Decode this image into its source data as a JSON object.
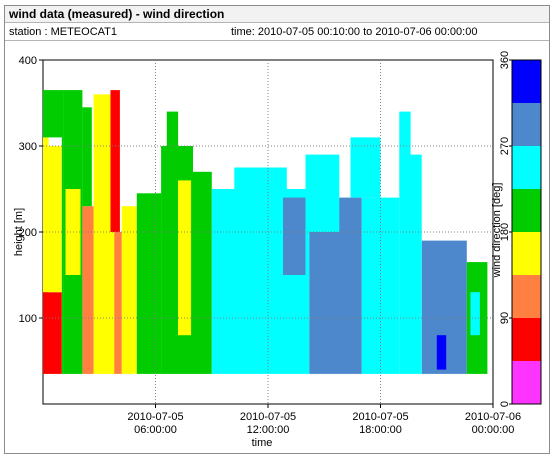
{
  "header": {
    "title": "wind data (measured) - wind direction",
    "station": "station : METEOCAT1",
    "time_range": "time: 2010-07-05 00:10:00 to 2010-07-06 00:00:00"
  },
  "chart_data": {
    "type": "heatmap",
    "xlabel": "time",
    "ylabel": "height [m]",
    "colorbar_label": "wind direction [deg]",
    "x_range_hours": [
      0,
      24
    ],
    "x_ticks": [
      {
        "hour": 6,
        "line1": "2010-07-05",
        "line2": "06:00:00"
      },
      {
        "hour": 12,
        "line1": "2010-07-05",
        "line2": "12:00:00"
      },
      {
        "hour": 18,
        "line1": "2010-07-05",
        "line2": "18:00:00"
      },
      {
        "hour": 24,
        "line1": "2010-07-06",
        "line2": "00:00:00"
      }
    ],
    "ylim": [
      0,
      400
    ],
    "y_ticks": [
      100,
      200,
      300,
      400
    ],
    "colorbar": {
      "ticks": [
        0,
        90,
        180,
        270,
        360
      ],
      "bins": [
        {
          "from": 0,
          "to": 45,
          "color": "#ff33ff"
        },
        {
          "from": 45,
          "to": 90,
          "color": "#ff0000"
        },
        {
          "from": 90,
          "to": 135,
          "color": "#ff8040"
        },
        {
          "from": 135,
          "to": 180,
          "color": "#ffff00"
        },
        {
          "from": 180,
          "to": 225,
          "color": "#00cc00"
        },
        {
          "from": 225,
          "to": 270,
          "color": "#00ffff"
        },
        {
          "from": 270,
          "to": 315,
          "color": "#4d88cc"
        },
        {
          "from": 315,
          "to": 360,
          "color": "#0000ff"
        }
      ]
    },
    "blocks": [
      {
        "t0": 0.0,
        "t1": 0.3,
        "h0": 35,
        "h1": 310,
        "dir": 160
      },
      {
        "t0": 0.0,
        "t1": 0.8,
        "h0": 310,
        "h1": 365,
        "dir": 200
      },
      {
        "t0": 0.0,
        "t1": 1.0,
        "h0": 35,
        "h1": 130,
        "dir": 70
      },
      {
        "t0": 0.3,
        "t1": 1.0,
        "h0": 130,
        "h1": 300,
        "dir": 160
      },
      {
        "t0": 1.0,
        "t1": 1.1,
        "h0": 35,
        "h1": 365,
        "dir": 200
      },
      {
        "t0": 0.8,
        "t1": 1.1,
        "h0": 310,
        "h1": 365,
        "dir": 200
      },
      {
        "t0": 1.1,
        "t1": 2.1,
        "h0": 35,
        "h1": 365,
        "dir": 200
      },
      {
        "t0": 1.2,
        "t1": 2.0,
        "h0": 150,
        "h1": 250,
        "dir": 160
      },
      {
        "t0": 2.1,
        "t1": 2.7,
        "h0": 35,
        "h1": 230,
        "dir": 110
      },
      {
        "t0": 2.1,
        "t1": 2.6,
        "h0": 230,
        "h1": 345,
        "dir": 200
      },
      {
        "t0": 2.7,
        "t1": 3.9,
        "h0": 35,
        "h1": 360,
        "dir": 160
      },
      {
        "t0": 3.6,
        "t1": 4.1,
        "h0": 200,
        "h1": 365,
        "dir": 70
      },
      {
        "t0": 3.8,
        "t1": 4.2,
        "h0": 35,
        "h1": 200,
        "dir": 110
      },
      {
        "t0": 4.2,
        "t1": 5.0,
        "h0": 35,
        "h1": 230,
        "dir": 160
      },
      {
        "t0": 5.0,
        "t1": 6.3,
        "h0": 35,
        "h1": 245,
        "dir": 200
      },
      {
        "t0": 6.3,
        "t1": 8.0,
        "h0": 35,
        "h1": 300,
        "dir": 200
      },
      {
        "t0": 6.6,
        "t1": 7.2,
        "h0": 300,
        "h1": 340,
        "dir": 200
      },
      {
        "t0": 7.2,
        "t1": 7.9,
        "h0": 80,
        "h1": 260,
        "dir": 160
      },
      {
        "t0": 8.0,
        "t1": 9.0,
        "h0": 35,
        "h1": 270,
        "dir": 200
      },
      {
        "t0": 9.0,
        "t1": 14.2,
        "h0": 35,
        "h1": 250,
        "dir": 250
      },
      {
        "t0": 10.2,
        "t1": 13.0,
        "h0": 250,
        "h1": 275,
        "dir": 250
      },
      {
        "t0": 12.8,
        "t1": 14.0,
        "h0": 150,
        "h1": 240,
        "dir": 290
      },
      {
        "t0": 14.2,
        "t1": 17.0,
        "h0": 35,
        "h1": 240,
        "dir": 290
      },
      {
        "t0": 14.0,
        "t1": 15.8,
        "h0": 200,
        "h1": 290,
        "dir": 250
      },
      {
        "t0": 16.4,
        "t1": 18.0,
        "h0": 240,
        "h1": 310,
        "dir": 250
      },
      {
        "t0": 17.0,
        "t1": 19.0,
        "h0": 35,
        "h1": 240,
        "dir": 250
      },
      {
        "t0": 19.0,
        "t1": 19.6,
        "h0": 35,
        "h1": 340,
        "dir": 250
      },
      {
        "t0": 19.6,
        "t1": 20.2,
        "h0": 35,
        "h1": 290,
        "dir": 250
      },
      {
        "t0": 20.2,
        "t1": 22.6,
        "h0": 35,
        "h1": 190,
        "dir": 290
      },
      {
        "t0": 21.0,
        "t1": 21.5,
        "h0": 40,
        "h1": 80,
        "dir": 340
      },
      {
        "t0": 22.6,
        "t1": 23.7,
        "h0": 35,
        "h1": 165,
        "dir": 200
      },
      {
        "t0": 22.8,
        "t1": 23.3,
        "h0": 80,
        "h1": 130,
        "dir": 250
      }
    ]
  }
}
